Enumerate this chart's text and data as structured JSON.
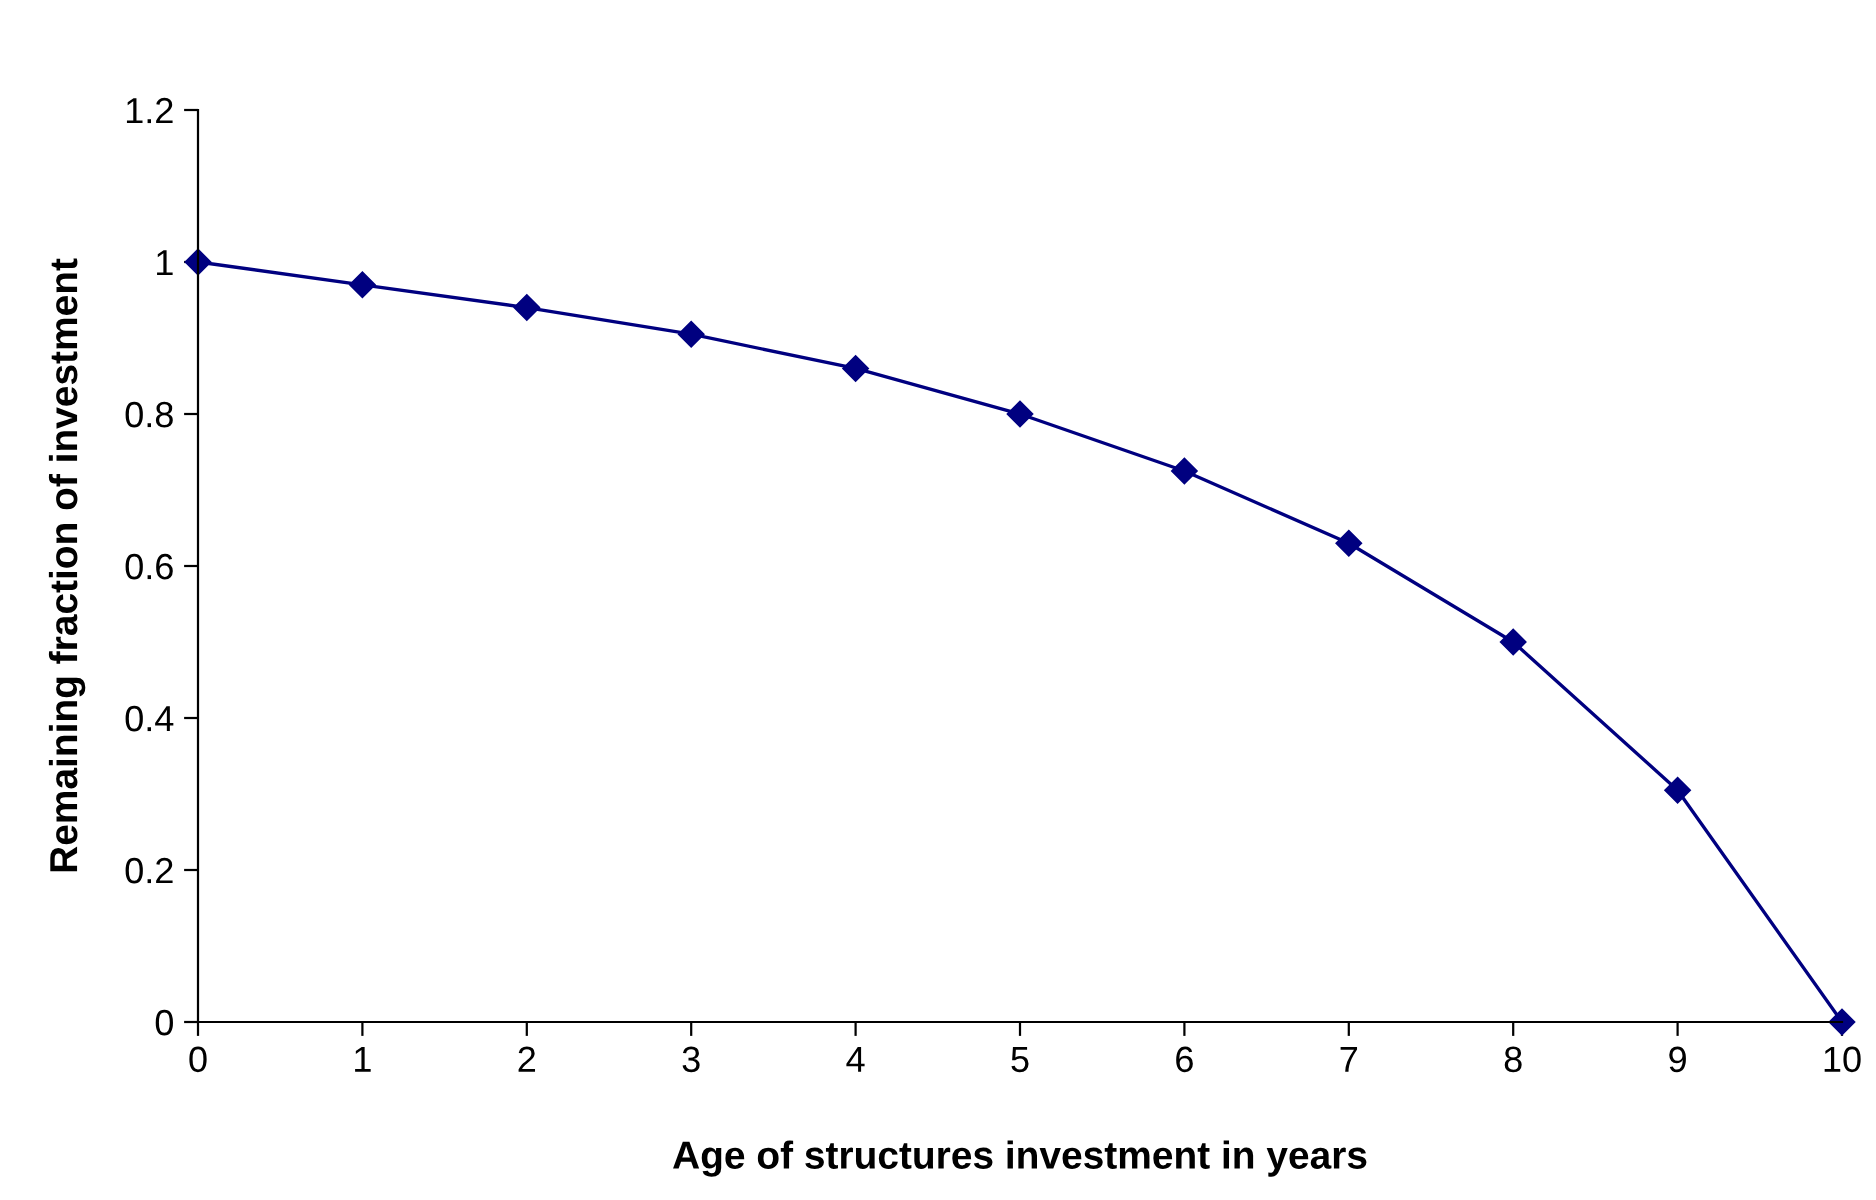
{
  "chart_data": {
    "type": "line",
    "xlabel": "Age of structures investment in years",
    "ylabel": "Remaining fraction of investment",
    "x": [
      0,
      1,
      2,
      3,
      4,
      5,
      6,
      7,
      8,
      9,
      10
    ],
    "series": [
      {
        "color": "#000080",
        "values": [
          1,
          0.97,
          0.94,
          0.905,
          0.86,
          0.8,
          0.725,
          0.63,
          0.5,
          0.305,
          0
        ]
      }
    ],
    "xlim": [
      0,
      10
    ],
    "xticks": [
      0,
      1,
      2,
      3,
      4,
      5,
      6,
      7,
      8,
      9,
      10
    ],
    "ylim": [
      0,
      1.2
    ],
    "yticks": [
      0,
      0.2,
      0.4,
      0.6,
      0.8,
      1,
      1.2
    ],
    "grid": false,
    "legend": false,
    "marker": "diamond",
    "line_style": "solid"
  }
}
